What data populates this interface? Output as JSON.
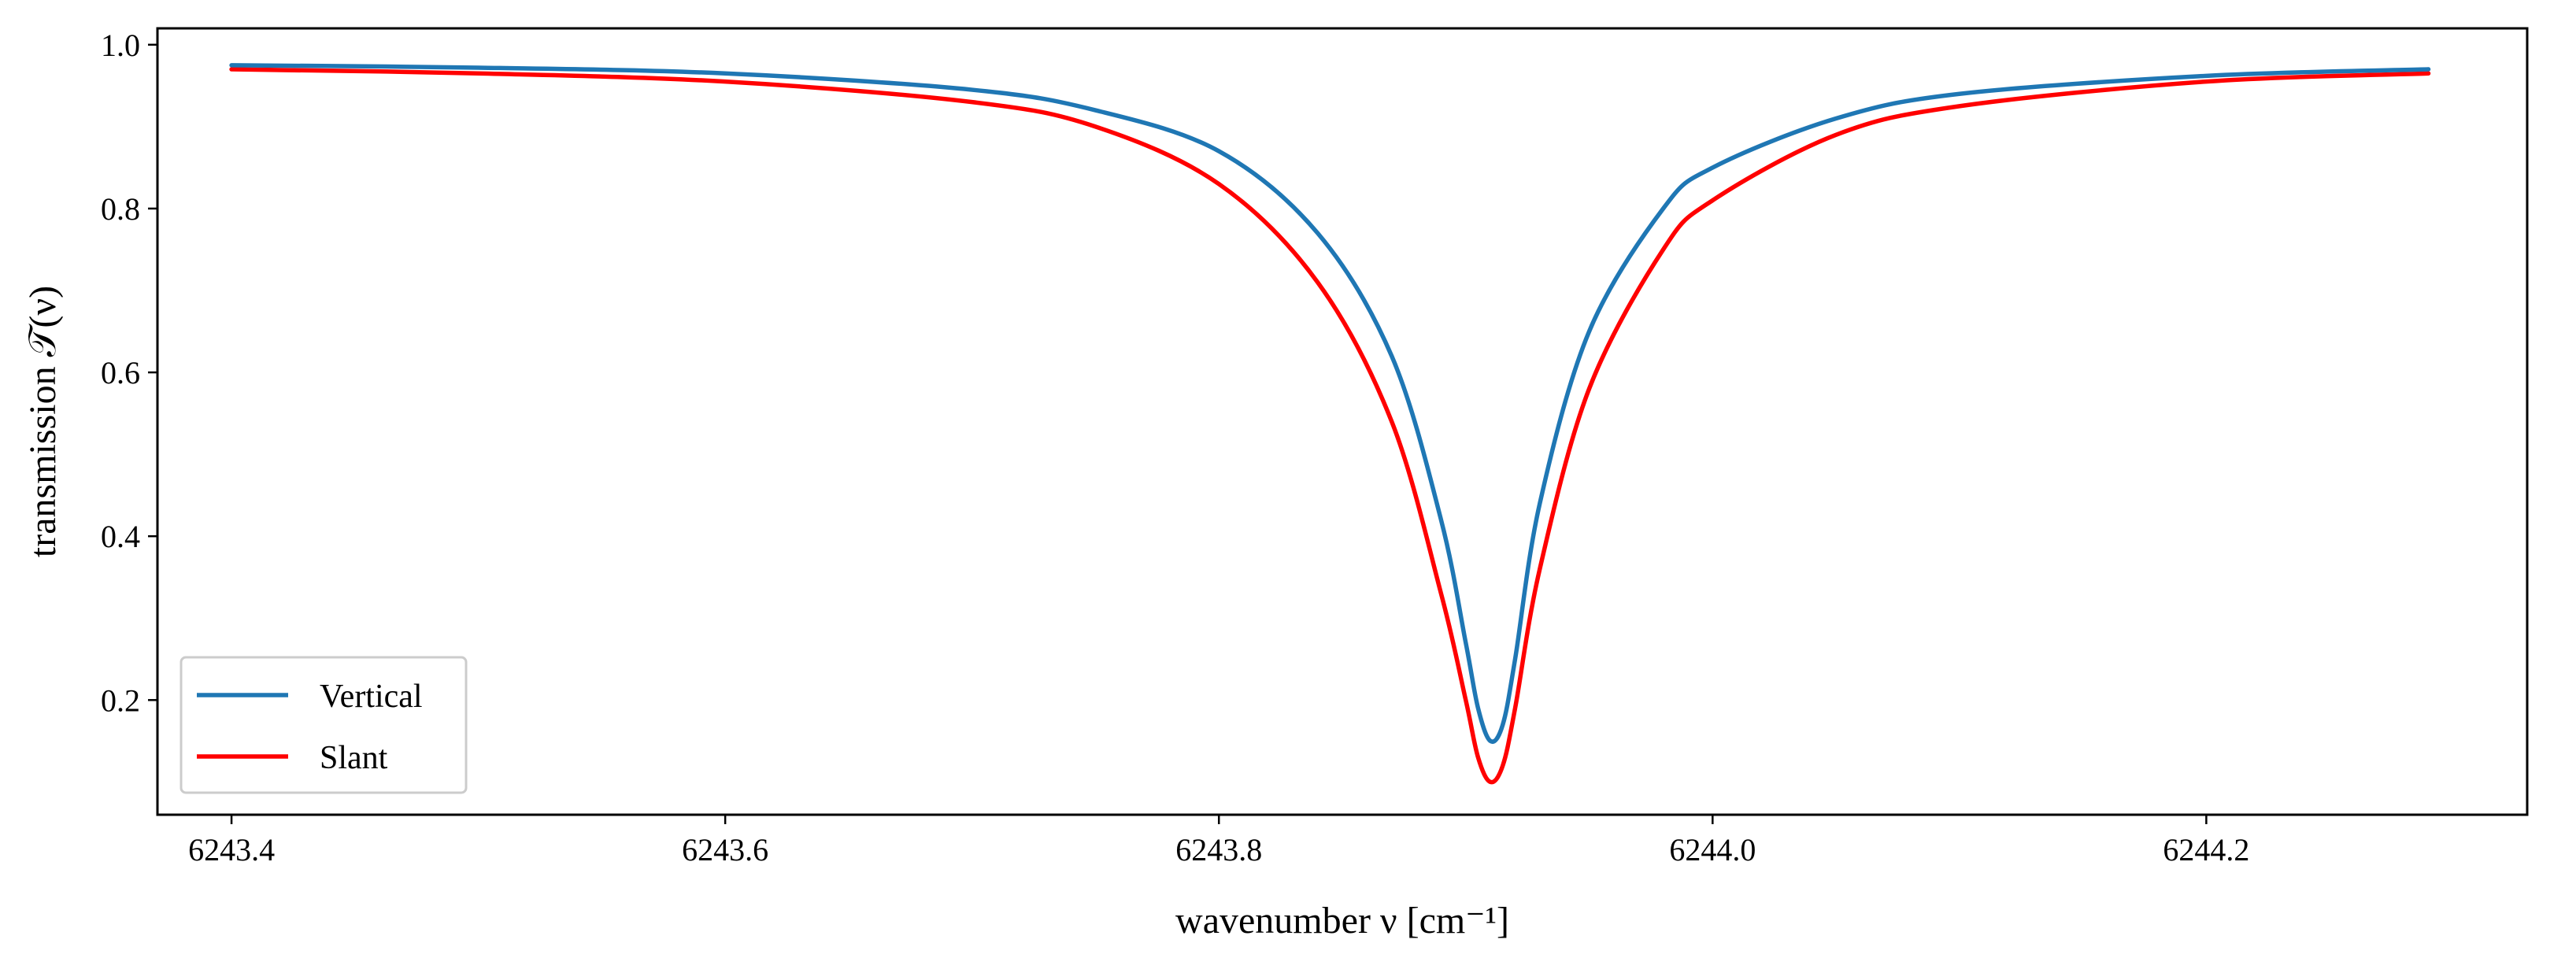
{
  "chart_data": {
    "type": "line",
    "title": "",
    "xlabel": "wavenumber ν [cm⁻¹]",
    "ylabel": "transmission 𝒯(ν)",
    "xlim": [
      6243.37,
      6244.33
    ],
    "ylim": [
      0.06,
      1.02
    ],
    "xticks": [
      6243.4,
      6243.6,
      6243.8,
      6244.0,
      6244.2
    ],
    "xtick_labels": [
      "6243.4",
      "6243.6",
      "6243.8",
      "6244.0",
      "6244.2"
    ],
    "yticks": [
      0.2,
      0.4,
      0.6,
      0.8,
      1.0
    ],
    "ytick_labels": [
      "0.2",
      "0.4",
      "0.6",
      "0.8",
      "1.0"
    ],
    "grid": false,
    "legend_position": "lower-left",
    "series": [
      {
        "name": "Vertical",
        "color": "#1f77b4",
        "x": [
          6243.4,
          6243.5,
          6243.6,
          6243.7,
          6243.75,
          6243.8,
          6243.84,
          6243.87,
          6243.89,
          6243.9,
          6243.905,
          6243.91,
          6243.915,
          6243.92,
          6243.93,
          6243.95,
          6243.98,
          6244.0,
          6244.05,
          6244.1,
          6244.2,
          6244.29
        ],
        "y": [
          0.975,
          0.972,
          0.965,
          0.945,
          0.92,
          0.87,
          0.77,
          0.62,
          0.42,
          0.27,
          0.19,
          0.15,
          0.17,
          0.25,
          0.44,
          0.65,
          0.8,
          0.85,
          0.91,
          0.94,
          0.962,
          0.97
        ]
      },
      {
        "name": "Slant",
        "color": "#ff0000",
        "x": [
          6243.4,
          6243.5,
          6243.6,
          6243.7,
          6243.75,
          6243.8,
          6243.84,
          6243.87,
          6243.89,
          6243.9,
          6243.905,
          6243.91,
          6243.915,
          6243.92,
          6243.93,
          6243.95,
          6243.98,
          6244.0,
          6244.05,
          6244.1,
          6244.2,
          6244.29
        ],
        "y": [
          0.97,
          0.965,
          0.955,
          0.93,
          0.9,
          0.83,
          0.71,
          0.54,
          0.33,
          0.2,
          0.13,
          0.1,
          0.12,
          0.19,
          0.36,
          0.58,
          0.75,
          0.81,
          0.89,
          0.925,
          0.955,
          0.965
        ]
      }
    ]
  }
}
